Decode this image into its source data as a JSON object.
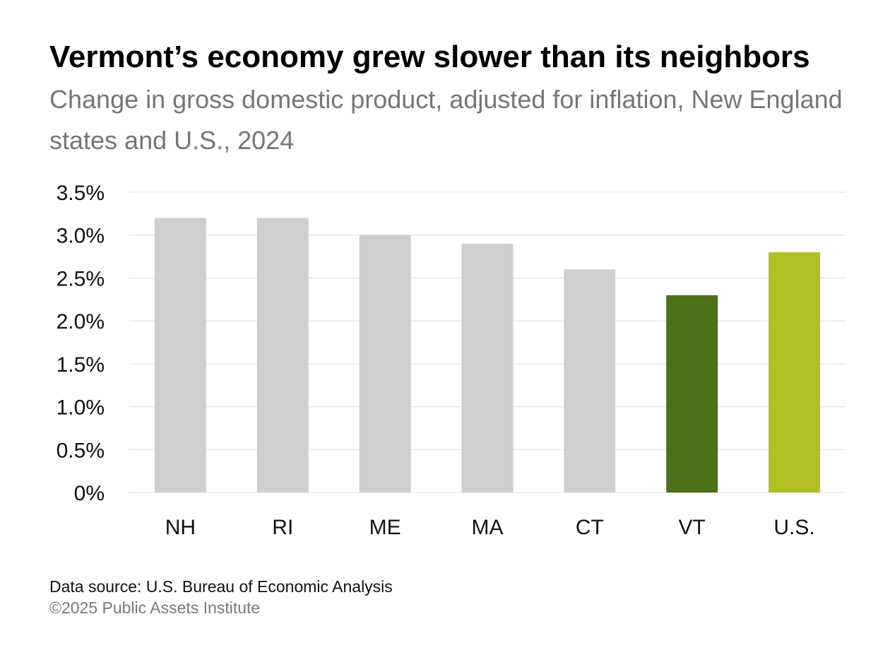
{
  "heading": {
    "title": "Vermont’s economy grew slower than its neighbors",
    "subtitle": "Change in gross domestic product, adjusted for inflation, New England states and U.S., 2024"
  },
  "chart_data": {
    "type": "bar",
    "title": "Vermont’s economy grew slower than its neighbors",
    "subtitle": "Change in gross domestic product, adjusted for inflation, New England states and U.S., 2024",
    "xlabel": "",
    "ylabel": "",
    "categories": [
      "NH",
      "RI",
      "ME",
      "MA",
      "CT",
      "VT",
      "U.S."
    ],
    "values": [
      3.2,
      3.2,
      3.0,
      2.9,
      2.6,
      2.3,
      2.8
    ],
    "bar_colors": [
      "#d0cfd0",
      "#d0cfd0",
      "#d0cfd0",
      "#d0cfd0",
      "#d0cfd0",
      "#4d7119",
      "#b1bf25"
    ],
    "ylim": [
      0,
      3.5
    ],
    "yticks": [
      0,
      0.5,
      1.0,
      1.5,
      2.0,
      2.5,
      3.0,
      3.5
    ],
    "ytick_labels": [
      "0%",
      "0.5%",
      "1.0%",
      "1.5%",
      "2.0%",
      "2.5%",
      "3.0%",
      "3.5%"
    ],
    "grid": true,
    "gridline_color": "#e6e6e6",
    "legend": "none"
  },
  "footer": {
    "source": "Data source: U.S. Bureau of Economic Analysis",
    "copyright": "©2025 Public Assets Institute"
  }
}
